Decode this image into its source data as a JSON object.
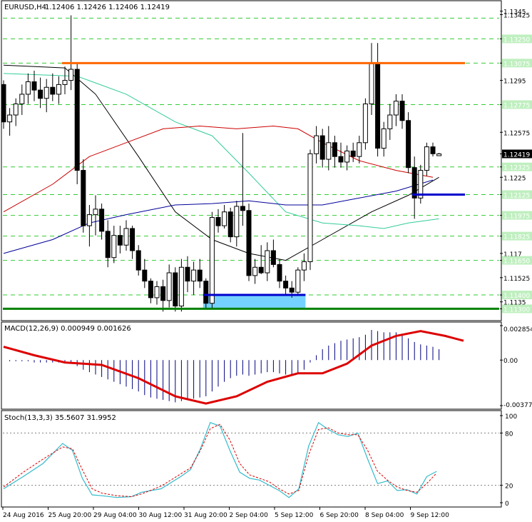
{
  "header": {
    "symbol": "EURUSD,H4",
    "ohlc": "1.12406 1.12426 1.12406 1.12419"
  },
  "colors": {
    "grid": "#00c000",
    "frame": "#000000",
    "candle_body": "#000000",
    "resistance": "#ff6600",
    "support": "#008000",
    "short_support": "#0000cc",
    "support_zone": "#66ccff",
    "ma_fast": "#000000",
    "ma_mid": "#33cc99",
    "ma_slow": "#cc0000",
    "ma_long": "#000099",
    "macd_hist": "#000080",
    "macd_signal": "#dd0000",
    "stoch_main": "#33bbcc",
    "stoch_signal": "#dd0000",
    "current_price_label_bg": "#000000"
  },
  "chart_data": [
    {
      "type": "candlestick",
      "title": "EURUSD,H4",
      "ylim": [
        1.1123,
        1.1351
      ],
      "y_ticks": [
        1.1345,
        1.13425,
        1.1325,
        1.13075,
        1.1295,
        1.12775,
        1.12575,
        1.12419,
        1.12325,
        1.1225,
        1.12125,
        1.11975,
        1.11825,
        1.117,
        1.1165,
        1.11525,
        1.114,
        1.1135,
        1.113
      ],
      "highlighted_price_labels": [
        "1.13400",
        "1.13250",
        "1.13075",
        "1.12775",
        "1.12325",
        "1.12125",
        "1.11975",
        "1.11825",
        "1.11650",
        "1.11400",
        "1.11300"
      ],
      "current_price": "1.12419",
      "x_labels": [
        "24 Aug 2016",
        "25 Aug 20:00",
        "29 Aug 04:00",
        "30 Aug 12:00",
        "31 Aug 20:00",
        "2 Sep 04:00",
        "5 Sep 12:00",
        "6 Sep 20:00",
        "8 Sep 04:00",
        "9 Sep 12:00"
      ],
      "candles": [
        [
          1.1292,
          1.1295,
          1.126,
          1.1265
        ],
        [
          1.1265,
          1.1275,
          1.1255,
          1.127
        ],
        [
          1.127,
          1.1282,
          1.1262,
          1.1278
        ],
        [
          1.1278,
          1.1292,
          1.127,
          1.1285
        ],
        [
          1.1285,
          1.13,
          1.1278,
          1.1294
        ],
        [
          1.1294,
          1.1302,
          1.128,
          1.1288
        ],
        [
          1.1288,
          1.1297,
          1.1275,
          1.1282
        ],
        [
          1.1282,
          1.1296,
          1.1272,
          1.129
        ],
        [
          1.129,
          1.13,
          1.128,
          1.1285
        ],
        [
          1.1285,
          1.1298,
          1.1278,
          1.1292
        ],
        [
          1.1292,
          1.1305,
          1.1285,
          1.1295
        ],
        [
          1.1295,
          1.1342,
          1.1288,
          1.1303
        ],
        [
          1.1303,
          1.1308,
          1.122,
          1.123
        ],
        [
          1.123,
          1.1238,
          1.1185,
          1.119
        ],
        [
          1.119,
          1.1205,
          1.1175,
          1.1198
        ],
        [
          1.1198,
          1.1212,
          1.1183,
          1.1202
        ],
        [
          1.1202,
          1.1206,
          1.118,
          1.1186
        ],
        [
          1.1186,
          1.1194,
          1.116,
          1.1167
        ],
        [
          1.1167,
          1.119,
          1.1163,
          1.1183
        ],
        [
          1.1183,
          1.119,
          1.117,
          1.1176
        ],
        [
          1.1176,
          1.1194,
          1.1172,
          1.1188
        ],
        [
          1.1188,
          1.119,
          1.1166,
          1.1172
        ],
        [
          1.1172,
          1.1176,
          1.1154,
          1.1158
        ],
        [
          1.1158,
          1.1166,
          1.1145,
          1.115
        ],
        [
          1.115,
          1.1152,
          1.1134,
          1.1138
        ],
        [
          1.1138,
          1.115,
          1.1133,
          1.1146
        ],
        [
          1.1146,
          1.1151,
          1.1128,
          1.1136
        ],
        [
          1.1136,
          1.1162,
          1.1131,
          1.1156
        ],
        [
          1.1156,
          1.116,
          1.1128,
          1.1132
        ],
        [
          1.1132,
          1.1166,
          1.1128,
          1.116
        ],
        [
          1.116,
          1.1168,
          1.1142,
          1.115
        ],
        [
          1.115,
          1.1164,
          1.114,
          1.1158
        ],
        [
          1.1158,
          1.1166,
          1.1145,
          1.115
        ],
        [
          1.115,
          1.1152,
          1.113,
          1.1134
        ],
        [
          1.1134,
          1.12,
          1.113,
          1.1196
        ],
        [
          1.1196,
          1.1202,
          1.1185,
          1.119
        ],
        [
          1.119,
          1.1205,
          1.1188,
          1.12
        ],
        [
          1.12,
          1.1203,
          1.1178,
          1.1182
        ],
        [
          1.1182,
          1.1208,
          1.1175,
          1.1204
        ],
        [
          1.1204,
          1.1257,
          1.119,
          1.1201
        ],
        [
          1.1201,
          1.1206,
          1.115,
          1.1154
        ],
        [
          1.1154,
          1.1166,
          1.1148,
          1.116
        ],
        [
          1.116,
          1.1176,
          1.1155,
          1.1156
        ],
        [
          1.1156,
          1.1178,
          1.115,
          1.1172
        ],
        [
          1.1172,
          1.118,
          1.116,
          1.1162
        ],
        [
          1.1162,
          1.1166,
          1.1145,
          1.115
        ],
        [
          1.115,
          1.1154,
          1.114,
          1.1145
        ],
        [
          1.1145,
          1.115,
          1.1138,
          1.1142
        ],
        [
          1.1142,
          1.116,
          1.114,
          1.1158
        ],
        [
          1.1158,
          1.117,
          1.115,
          1.1164
        ],
        [
          1.1164,
          1.1245,
          1.1158,
          1.1242
        ],
        [
          1.1242,
          1.1262,
          1.1235,
          1.1255
        ],
        [
          1.1255,
          1.126,
          1.1232,
          1.1238
        ],
        [
          1.1238,
          1.1262,
          1.123,
          1.125
        ],
        [
          1.125,
          1.1255,
          1.1232,
          1.124
        ],
        [
          1.124,
          1.125,
          1.1232,
          1.1236
        ],
        [
          1.1236,
          1.1248,
          1.123,
          1.1244
        ],
        [
          1.1244,
          1.125,
          1.1236,
          1.124
        ],
        [
          1.124,
          1.1255,
          1.1235,
          1.125
        ],
        [
          1.125,
          1.1282,
          1.1245,
          1.1278
        ],
        [
          1.1278,
          1.1322,
          1.127,
          1.1307
        ],
        [
          1.1307,
          1.1322,
          1.124,
          1.1246
        ],
        [
          1.1246,
          1.1265,
          1.124,
          1.126
        ],
        [
          1.126,
          1.1278,
          1.1252,
          1.127
        ],
        [
          1.127,
          1.1285,
          1.1262,
          1.128
        ],
        [
          1.128,
          1.1285,
          1.126,
          1.1266
        ],
        [
          1.1266,
          1.1272,
          1.1228,
          1.1232
        ],
        [
          1.1232,
          1.124,
          1.1195,
          1.121
        ],
        [
          1.121,
          1.1234,
          1.1206,
          1.123
        ],
        [
          1.123,
          1.125,
          1.1226,
          1.1247
        ],
        [
          1.1247,
          1.125,
          1.124,
          1.1242
        ],
        [
          1.12406,
          1.12426,
          1.12406,
          1.12419
        ]
      ],
      "horizontal_lines": [
        {
          "name": "resistance",
          "price": 1.13075
        },
        {
          "name": "support",
          "price": 1.113
        },
        {
          "name": "zone-top",
          "price": 1.114
        },
        {
          "name": "recent-support",
          "price": 1.12125
        }
      ],
      "moving_averages": [
        {
          "key": "ma_fast",
          "points": [
            [
              0,
              1.1306
            ],
            [
              10,
              1.1304
            ],
            [
              15,
              1.1285
            ],
            [
              22,
              1.124
            ],
            [
              28,
              1.12
            ],
            [
              34,
              1.118
            ],
            [
              40,
              1.117
            ],
            [
              46,
              1.1165
            ],
            [
              52,
              1.118
            ],
            [
              60,
              1.12
            ],
            [
              66,
              1.1212
            ],
            [
              71,
              1.1225
            ]
          ]
        },
        {
          "key": "ma_mid",
          "points": [
            [
              0,
              1.13
            ],
            [
              12,
              1.1298
            ],
            [
              20,
              1.1285
            ],
            [
              28,
              1.1265
            ],
            [
              34,
              1.1255
            ],
            [
              40,
              1.1228
            ],
            [
              46,
              1.12
            ],
            [
              52,
              1.1192
            ],
            [
              58,
              1.119
            ],
            [
              62,
              1.1188
            ],
            [
              66,
              1.1192
            ],
            [
              71,
              1.1195
            ]
          ]
        },
        {
          "key": "ma_slow",
          "points": [
            [
              0,
              1.12
            ],
            [
              8,
              1.122
            ],
            [
              14,
              1.124
            ],
            [
              20,
              1.125
            ],
            [
              26,
              1.126
            ],
            [
              32,
              1.1262
            ],
            [
              38,
              1.126
            ],
            [
              44,
              1.1262
            ],
            [
              48,
              1.126
            ],
            [
              52,
              1.125
            ],
            [
              58,
              1.1237
            ],
            [
              64,
              1.123
            ],
            [
              70,
              1.1225
            ]
          ]
        },
        {
          "key": "ma_long",
          "points": [
            [
              0,
              1.117
            ],
            [
              8,
              1.118
            ],
            [
              14,
              1.1192
            ],
            [
              20,
              1.1198
            ],
            [
              28,
              1.1205
            ],
            [
              34,
              1.1206
            ],
            [
              40,
              1.1208
            ],
            [
              46,
              1.1205
            ],
            [
              52,
              1.1205
            ],
            [
              58,
              1.121
            ],
            [
              64,
              1.1215
            ],
            [
              70,
              1.1223
            ]
          ]
        }
      ]
    },
    {
      "type": "macd",
      "title": "MACD(12,26,9) 0.000949 0.001626",
      "ylim": [
        -0.003772,
        0.002854
      ],
      "y_ticks": [
        "0.002854",
        "0.00",
        "-0.003772"
      ],
      "histogram": [
        0.0,
        -0.0001,
        -0.0001,
        -0.0001,
        -0.0001,
        -0.0002,
        -0.0002,
        -0.0002,
        -0.0002,
        -0.0002,
        -0.0002,
        -0.0003,
        -0.0005,
        -0.0008,
        -0.001,
        -0.0012,
        -0.0014,
        -0.0016,
        -0.0018,
        -0.002,
        -0.0022,
        -0.0024,
        -0.0026,
        -0.0029,
        -0.0031,
        -0.0032,
        -0.0033,
        -0.0034,
        -0.0035,
        -0.0034,
        -0.0033,
        -0.0032,
        -0.0031,
        -0.003,
        -0.0026,
        -0.0022,
        -0.0018,
        -0.0015,
        -0.0013,
        -0.0012,
        -0.0013,
        -0.0012,
        -0.0011,
        -0.001,
        -0.001,
        -0.0011,
        -0.0012,
        -0.0012,
        -0.0011,
        -0.0008,
        -0.0002,
        0.0004,
        0.0009,
        0.0012,
        0.0014,
        0.0016,
        0.0017,
        0.0018,
        0.0019,
        0.0021,
        0.0025,
        0.0024,
        0.0023,
        0.0023,
        0.0023,
        0.0021,
        0.0018,
        0.0015,
        0.0013,
        0.0012,
        0.0011,
        0.0009
      ],
      "signal_points": [
        [
          0,
          0.0011
        ],
        [
          5,
          0.0004
        ],
        [
          10,
          -0.0002
        ],
        [
          16,
          -0.0004
        ],
        [
          22,
          -0.0015
        ],
        [
          28,
          -0.003
        ],
        [
          33,
          -0.0036
        ],
        [
          38,
          -0.003
        ],
        [
          43,
          -0.0018
        ],
        [
          48,
          -0.0011
        ],
        [
          52,
          -0.0011
        ],
        [
          56,
          -0.0003
        ],
        [
          60,
          0.0012
        ],
        [
          64,
          0.002
        ],
        [
          68,
          0.0024
        ],
        [
          72,
          0.002
        ],
        [
          75,
          0.0016
        ]
      ]
    },
    {
      "type": "stochastic",
      "title": "Stoch(13,3,3) 35.5607 31.9952",
      "ylim": [
        0,
        100
      ],
      "y_ticks": [
        100,
        80,
        20,
        0
      ],
      "main_points": [
        [
          0,
          16
        ],
        [
          4,
          30
        ],
        [
          8,
          45
        ],
        [
          12,
          68
        ],
        [
          14,
          60
        ],
        [
          16,
          28
        ],
        [
          18,
          9
        ],
        [
          20,
          8
        ],
        [
          23,
          6
        ],
        [
          26,
          7
        ],
        [
          28,
          12
        ],
        [
          32,
          16
        ],
        [
          36,
          30
        ],
        [
          38,
          38
        ],
        [
          40,
          62
        ],
        [
          42,
          92
        ],
        [
          44,
          88
        ],
        [
          46,
          60
        ],
        [
          48,
          35
        ],
        [
          50,
          28
        ],
        [
          52,
          26
        ],
        [
          54,
          20
        ],
        [
          56,
          14
        ],
        [
          58,
          6
        ],
        [
          60,
          16
        ],
        [
          62,
          65
        ],
        [
          64,
          92
        ],
        [
          66,
          84
        ],
        [
          68,
          78
        ],
        [
          70,
          76
        ],
        [
          72,
          80
        ],
        [
          74,
          50
        ],
        [
          76,
          22
        ],
        [
          78,
          25
        ],
        [
          80,
          14
        ],
        [
          82,
          15
        ],
        [
          84,
          10
        ],
        [
          86,
          30
        ],
        [
          88,
          36
        ]
      ],
      "signal_points": [
        [
          0,
          18
        ],
        [
          4,
          35
        ],
        [
          8,
          50
        ],
        [
          12,
          64
        ],
        [
          14,
          62
        ],
        [
          16,
          38
        ],
        [
          18,
          16
        ],
        [
          20,
          11
        ],
        [
          23,
          8
        ],
        [
          26,
          7
        ],
        [
          28,
          10
        ],
        [
          32,
          19
        ],
        [
          36,
          33
        ],
        [
          38,
          40
        ],
        [
          40,
          60
        ],
        [
          42,
          85
        ],
        [
          44,
          90
        ],
        [
          46,
          72
        ],
        [
          48,
          45
        ],
        [
          50,
          32
        ],
        [
          52,
          28
        ],
        [
          54,
          24
        ],
        [
          56,
          16
        ],
        [
          58,
          10
        ],
        [
          60,
          14
        ],
        [
          62,
          55
        ],
        [
          64,
          84
        ],
        [
          66,
          86
        ],
        [
          68,
          80
        ],
        [
          70,
          78
        ],
        [
          72,
          78
        ],
        [
          74,
          60
        ],
        [
          76,
          36
        ],
        [
          78,
          26
        ],
        [
          80,
          18
        ],
        [
          82,
          14
        ],
        [
          84,
          12
        ],
        [
          86,
          22
        ],
        [
          88,
          34
        ]
      ]
    }
  ]
}
